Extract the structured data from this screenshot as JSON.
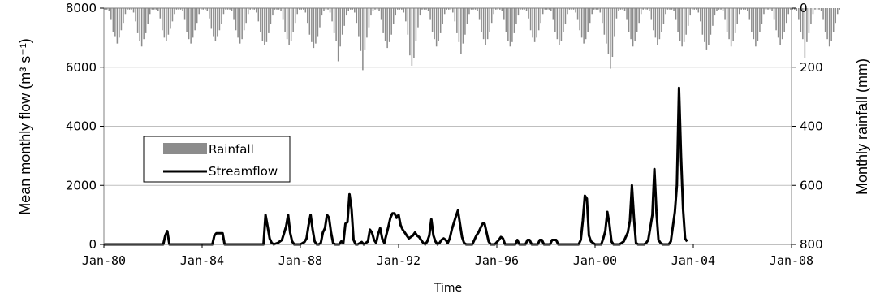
{
  "chart_data": {
    "type": "line",
    "title": "",
    "xlabel": "Time",
    "ylabel": "Mean monthly flow (m³ s⁻¹)",
    "y2label": "Monthly rainfall (mm)",
    "x_ticks": [
      "Jan-80",
      "Jan-84",
      "Jan-88",
      "Jan-92",
      "Jan-96",
      "Jan-00",
      "Jan-04",
      "Jan-08"
    ],
    "xlim": [
      "Jan-80",
      "Jan-08"
    ],
    "ylim": [
      0,
      8000
    ],
    "y_ticks": [
      "0",
      "2000",
      "4000",
      "6000",
      "8000"
    ],
    "y2lim": [
      800,
      0
    ],
    "y2_inverted": true,
    "y2_ticks": [
      "800",
      "600",
      "400",
      "200",
      "0"
    ],
    "grid": "horizontal",
    "legend_position": "center-left",
    "colors": {
      "rainfall": "#8c8c8c",
      "streamflow": "#000000",
      "grid": "#bfbfbf"
    },
    "series": [
      {
        "name": "Rainfall",
        "kind": "bar",
        "axis": "right",
        "units": "mm",
        "start": "Jan-80",
        "step": "month",
        "values": [
          5,
          5,
          10,
          40,
          80,
          95,
          120,
          100,
          75,
          50,
          20,
          5,
          5,
          5,
          15,
          45,
          85,
          110,
          130,
          105,
          85,
          55,
          20,
          5,
          5,
          5,
          10,
          35,
          75,
          100,
          110,
          90,
          70,
          45,
          20,
          5,
          5,
          5,
          10,
          40,
          80,
          105,
          120,
          100,
          75,
          50,
          20,
          5,
          5,
          5,
          10,
          35,
          70,
          95,
          110,
          95,
          75,
          55,
          20,
          5,
          5,
          5,
          10,
          40,
          75,
          100,
          120,
          105,
          75,
          50,
          20,
          5,
          5,
          5,
          15,
          45,
          80,
          110,
          125,
          115,
          85,
          55,
          25,
          5,
          5,
          5,
          10,
          40,
          80,
          105,
          125,
          110,
          80,
          50,
          20,
          5,
          5,
          5,
          15,
          50,
          90,
          115,
          135,
          120,
          95,
          65,
          25,
          10,
          5,
          5,
          15,
          45,
          85,
          110,
          180,
          130,
          90,
          60,
          25,
          10,
          5,
          5,
          15,
          50,
          95,
          145,
          210,
          140,
          100,
          65,
          25,
          10,
          5,
          5,
          10,
          40,
          85,
          110,
          135,
          115,
          90,
          55,
          25,
          5,
          5,
          5,
          15,
          45,
          90,
          160,
          195,
          170,
          110,
          65,
          25,
          5,
          5,
          5,
          10,
          40,
          80,
          105,
          130,
          110,
          85,
          55,
          20,
          5,
          5,
          5,
          15,
          45,
          85,
          115,
          155,
          120,
          90,
          55,
          20,
          5,
          5,
          5,
          10,
          40,
          80,
          105,
          125,
          105,
          80,
          50,
          20,
          5,
          5,
          5,
          10,
          40,
          80,
          110,
          130,
          115,
          85,
          55,
          25,
          5,
          5,
          5,
          10,
          35,
          75,
          100,
          115,
          100,
          75,
          50,
          20,
          5,
          5,
          5,
          10,
          40,
          80,
          105,
          125,
          110,
          80,
          55,
          20,
          5,
          5,
          5,
          15,
          40,
          75,
          100,
          120,
          105,
          80,
          50,
          20,
          5,
          5,
          5,
          15,
          50,
          90,
          120,
          155,
          205,
          165,
          95,
          35,
          10,
          5,
          5,
          10,
          40,
          80,
          105,
          130,
          110,
          80,
          50,
          20,
          5,
          5,
          5,
          10,
          40,
          75,
          100,
          125,
          105,
          80,
          55,
          20,
          5,
          5,
          5,
          10,
          40,
          80,
          110,
          130,
          115,
          90,
          60,
          25,
          5,
          5,
          5,
          15,
          45,
          90,
          115,
          140,
          125,
          90,
          60,
          25,
          10,
          5,
          5,
          10,
          40,
          80,
          105,
          130,
          110,
          85,
          55,
          20,
          5,
          5,
          5,
          10,
          40,
          80,
          105,
          130,
          110,
          80,
          55,
          20,
          5,
          5,
          5,
          10,
          40,
          75,
          100,
          125,
          105,
          80,
          50,
          20,
          5,
          5,
          5,
          10,
          40,
          80,
          105,
          170,
          115,
          85,
          55,
          20,
          5,
          5,
          5,
          10,
          40,
          80,
          105,
          130,
          110,
          80,
          50,
          20,
          5
        ]
      },
      {
        "name": "Streamflow",
        "kind": "line",
        "axis": "left",
        "units": "m³ s⁻¹",
        "points": [
          [
            "Jan-80",
            0
          ],
          [
            "Jun-82",
            0
          ],
          [
            "Jul-82",
            300
          ],
          [
            "Aug-82",
            450
          ],
          [
            "Sep-82",
            0
          ],
          [
            "Jun-83",
            0
          ],
          [
            "Jul-83",
            0
          ],
          [
            "Jun-84",
            0
          ],
          [
            "Jul-84",
            300
          ],
          [
            "Aug-84",
            380
          ],
          [
            "Sep-84",
            380
          ],
          [
            "Oct-84",
            380
          ],
          [
            "Nov-84",
            380
          ],
          [
            "Dec-84",
            0
          ],
          [
            "Jul-86",
            0
          ],
          [
            "Aug-86",
            1000
          ],
          [
            "Sep-86",
            600
          ],
          [
            "Oct-86",
            200
          ],
          [
            "Nov-86",
            50
          ],
          [
            "Dec-86",
            0
          ],
          [
            "Feb-87",
            50
          ],
          [
            "Apr-87",
            150
          ],
          [
            "Jun-87",
            600
          ],
          [
            "Jul-87",
            1000
          ],
          [
            "Aug-87",
            400
          ],
          [
            "Sep-87",
            100
          ],
          [
            "Oct-87",
            0
          ],
          [
            "Nov-87",
            0
          ],
          [
            "Jan-88",
            0
          ],
          [
            "Mar-88",
            80
          ],
          [
            "Apr-88",
            200
          ],
          [
            "May-88",
            650
          ],
          [
            "Jun-88",
            1000
          ],
          [
            "Jul-88",
            500
          ],
          [
            "Aug-88",
            100
          ],
          [
            "Sep-88",
            0
          ],
          [
            "Oct-88",
            0
          ],
          [
            "Nov-88",
            50
          ],
          [
            "Dec-88",
            400
          ],
          [
            "Jan-89",
            550
          ],
          [
            "Feb-89",
            1000
          ],
          [
            "Mar-89",
            900
          ],
          [
            "Apr-89",
            400
          ],
          [
            "May-89",
            50
          ],
          [
            "Jun-89",
            0
          ],
          [
            "Aug-89",
            0
          ],
          [
            "Sep-89",
            100
          ],
          [
            "Oct-89",
            50
          ],
          [
            "Nov-89",
            700
          ],
          [
            "Dec-89",
            750
          ],
          [
            "Jan-90",
            1700
          ],
          [
            "Feb-90",
            1200
          ],
          [
            "Mar-90",
            150
          ],
          [
            "Apr-90",
            0
          ],
          [
            "May-90",
            0
          ],
          [
            "Jul-90",
            80
          ],
          [
            "Aug-90",
            0
          ],
          [
            "Oct-90",
            100
          ],
          [
            "Nov-90",
            500
          ],
          [
            "Dec-90",
            400
          ],
          [
            "Jan-91",
            150
          ],
          [
            "Feb-91",
            50
          ],
          [
            "Mar-91",
            350
          ],
          [
            "Apr-91",
            550
          ],
          [
            "May-91",
            200
          ],
          [
            "Jun-91",
            50
          ],
          [
            "Aug-91",
            600
          ],
          [
            "Sep-91",
            900
          ],
          [
            "Oct-91",
            1050
          ],
          [
            "Nov-91",
            1050
          ],
          [
            "Dec-91",
            900
          ],
          [
            "Jan-92",
            1000
          ],
          [
            "Feb-92",
            650
          ],
          [
            "Mar-92",
            500
          ],
          [
            "Apr-92",
            400
          ],
          [
            "May-92",
            300
          ],
          [
            "Jun-92",
            200
          ],
          [
            "Aug-92",
            300
          ],
          [
            "Sep-92",
            400
          ],
          [
            "Oct-92",
            300
          ],
          [
            "Nov-92",
            250
          ],
          [
            "Dec-92",
            150
          ],
          [
            "Jan-93",
            50
          ],
          [
            "Feb-93",
            0
          ],
          [
            "Mar-93",
            100
          ],
          [
            "Apr-93",
            300
          ],
          [
            "May-93",
            850
          ],
          [
            "Jun-93",
            300
          ],
          [
            "Jul-93",
            100
          ],
          [
            "Aug-93",
            0
          ],
          [
            "Sep-93",
            50
          ],
          [
            "Oct-93",
            150
          ],
          [
            "Nov-93",
            200
          ],
          [
            "Dec-93",
            150
          ],
          [
            "Jan-94",
            50
          ],
          [
            "Feb-94",
            200
          ],
          [
            "Mar-94",
            500
          ],
          [
            "May-94",
            950
          ],
          [
            "Jun-94",
            1150
          ],
          [
            "Jul-94",
            700
          ],
          [
            "Aug-94",
            250
          ],
          [
            "Sep-94",
            50
          ],
          [
            "Oct-94",
            0
          ],
          [
            "Jan-95",
            0
          ],
          [
            "Mar-95",
            300
          ],
          [
            "Apr-95",
            400
          ],
          [
            "Jun-95",
            700
          ],
          [
            "Jul-95",
            700
          ],
          [
            "Aug-95",
            400
          ],
          [
            "Sep-95",
            100
          ],
          [
            "Oct-95",
            0
          ],
          [
            "Dec-95",
            0
          ],
          [
            "Feb-96",
            150
          ],
          [
            "Mar-96",
            250
          ],
          [
            "Apr-96",
            200
          ],
          [
            "May-96",
            0
          ],
          [
            "Oct-96",
            0
          ],
          [
            "Nov-96",
            150
          ],
          [
            "Dec-96",
            0
          ],
          [
            "Mar-97",
            0
          ],
          [
            "Apr-97",
            150
          ],
          [
            "May-97",
            150
          ],
          [
            "Jun-97",
            0
          ],
          [
            "Sep-97",
            0
          ],
          [
            "Oct-97",
            150
          ],
          [
            "Nov-97",
            150
          ],
          [
            "Dec-97",
            0
          ],
          [
            "Mar-98",
            0
          ],
          [
            "Apr-98",
            150
          ],
          [
            "May-98",
            150
          ],
          [
            "Jun-98",
            150
          ],
          [
            "Jul-98",
            0
          ],
          [
            "May-99",
            0
          ],
          [
            "Jun-99",
            150
          ],
          [
            "Jul-99",
            800
          ],
          [
            "Aug-99",
            1650
          ],
          [
            "Sep-99",
            1550
          ],
          [
            "Oct-99",
            300
          ],
          [
            "Nov-99",
            100
          ],
          [
            "Dec-99",
            50
          ],
          [
            "Jan-00",
            0
          ],
          [
            "Apr-00",
            0
          ],
          [
            "May-00",
            200
          ],
          [
            "Jun-00",
            450
          ],
          [
            "Jul-00",
            1100
          ],
          [
            "Aug-00",
            700
          ],
          [
            "Sep-00",
            100
          ],
          [
            "Oct-00",
            0
          ],
          [
            "Jan-01",
            0
          ],
          [
            "Mar-01",
            100
          ],
          [
            "May-01",
            400
          ],
          [
            "Jun-01",
            800
          ],
          [
            "Jul-01",
            2000
          ],
          [
            "Aug-01",
            900
          ],
          [
            "Sep-01",
            50
          ],
          [
            "Oct-01",
            0
          ],
          [
            "Jan-02",
            0
          ],
          [
            "Feb-02",
            50
          ],
          [
            "Mar-02",
            150
          ],
          [
            "May-02",
            1000
          ],
          [
            "Jun-02",
            2550
          ],
          [
            "Jul-02",
            1100
          ],
          [
            "Aug-02",
            150
          ],
          [
            "Sep-02",
            50
          ],
          [
            "Oct-02",
            0
          ],
          [
            "Jan-03",
            0
          ],
          [
            "Feb-03",
            100
          ],
          [
            "Apr-03",
            1100
          ],
          [
            "May-03",
            2000
          ],
          [
            "Jun-03",
            5300
          ],
          [
            "Jul-03",
            3000
          ],
          [
            "Aug-03",
            1200
          ],
          [
            "Sep-03",
            200
          ],
          [
            "Oct-03",
            100
          ]
        ]
      }
    ]
  }
}
